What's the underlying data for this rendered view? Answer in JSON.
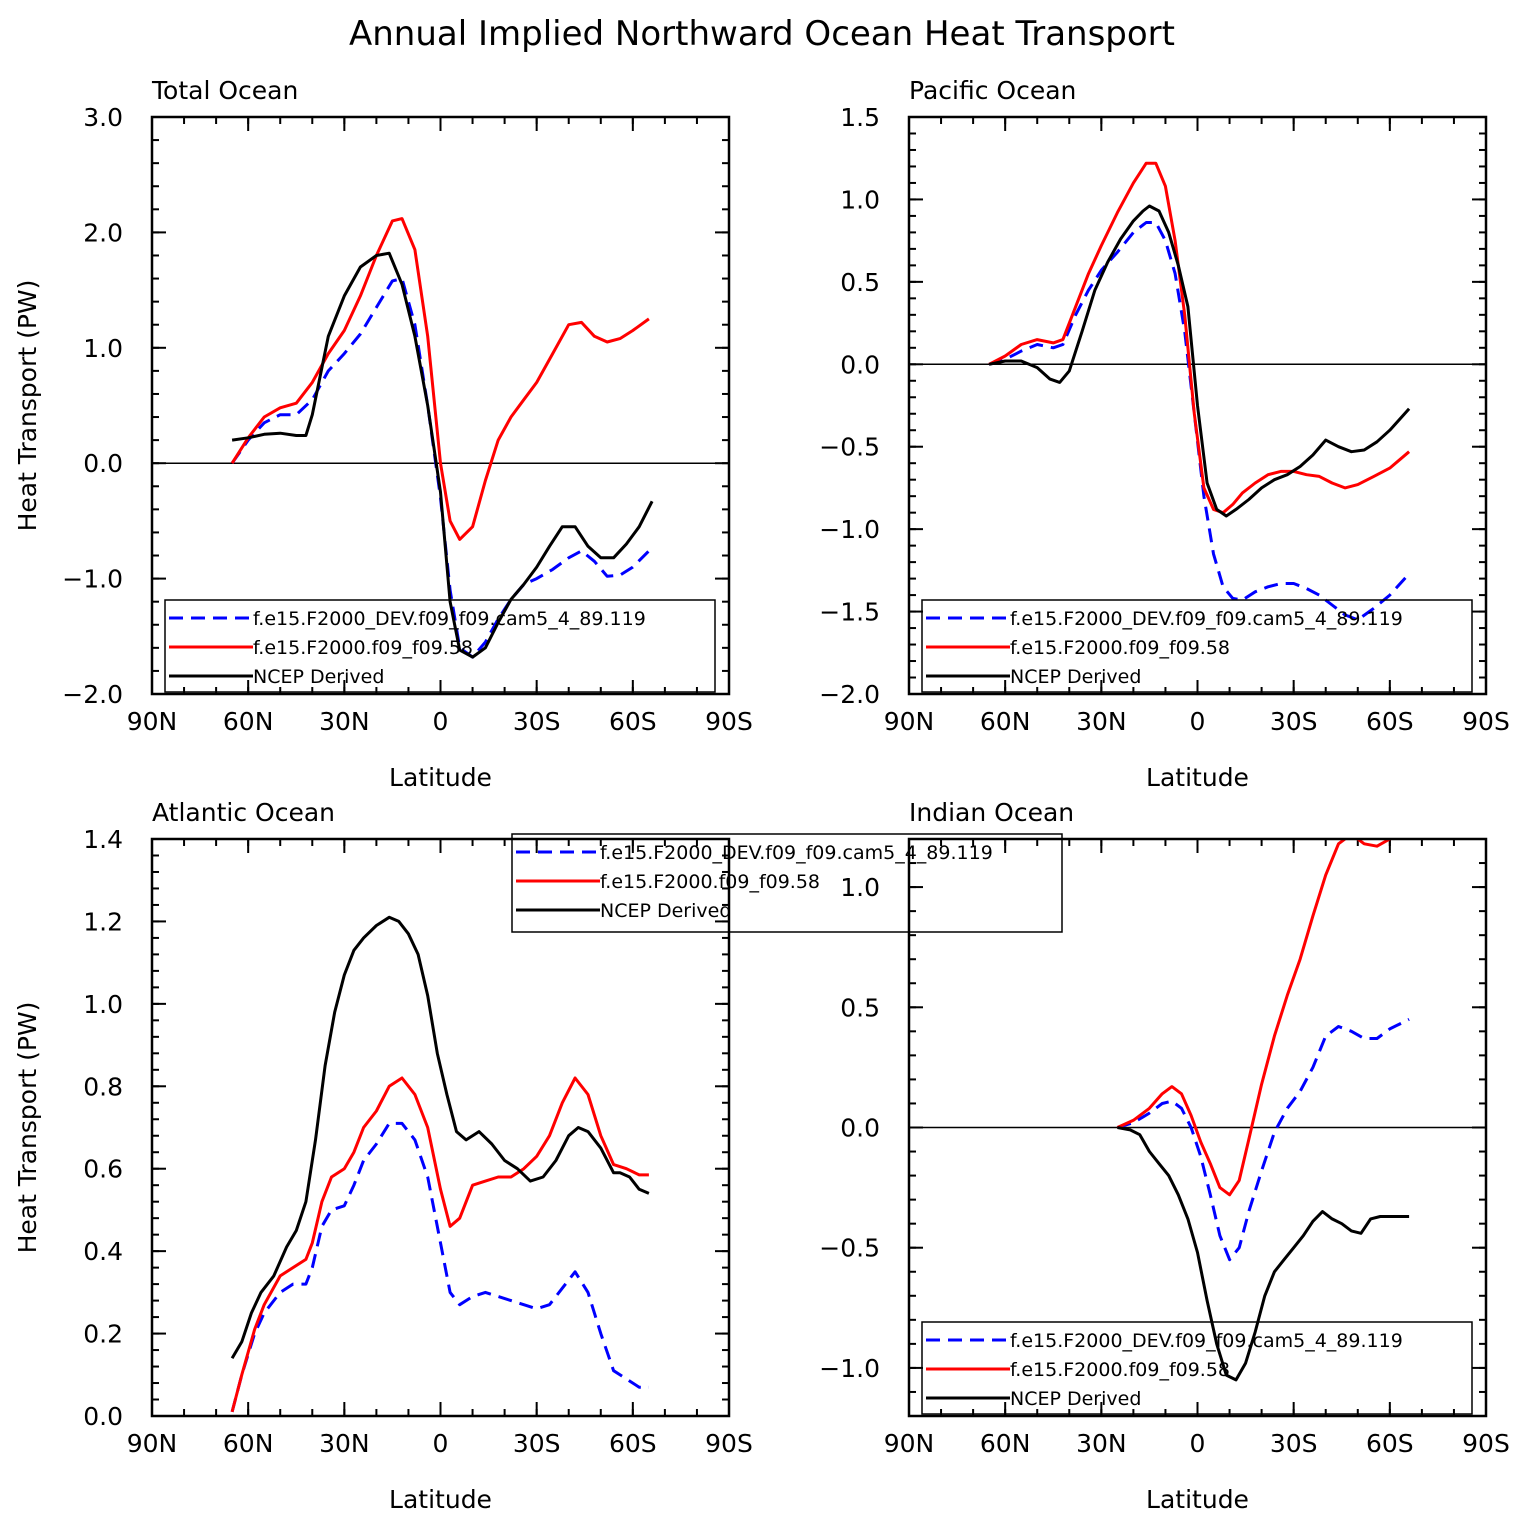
{
  "figure_title": "Annual Implied Northward Ocean Heat Transport",
  "colors": {
    "dev": "#0000ff",
    "ctrl": "#ff0000",
    "ncep": "#000000"
  },
  "legend_labels": [
    "f.e15.F2000_DEV.f09_f09.cam5_4_89.119",
    "f.e15.F2000.f09_f09.58",
    "NCEP Derived"
  ],
  "chart_data": [
    {
      "type": "line",
      "title": "Total Ocean",
      "xlabel": "Latitude",
      "ylabel": "Heat Transport (PW)",
      "x_ticks": [
        90,
        60,
        30,
        0,
        -30,
        -60,
        -90
      ],
      "x_tick_labels": [
        "90N",
        "60N",
        "30N",
        "0",
        "30S",
        "60S",
        "90S"
      ],
      "ylim": [
        -2.0,
        3.0
      ],
      "y_ticks": [
        -2.0,
        -1.0,
        0.0,
        1.0,
        2.0,
        3.0
      ],
      "y_tick_labels": [
        "−2.0",
        "−1.0",
        "0.0",
        "1.0",
        "2.0",
        "3.0"
      ],
      "legend_position": "bottom",
      "series": [
        {
          "name": "f.e15.F2000_DEV.f09_f09.cam5_4_89.119",
          "dash": true,
          "x": [
            65,
            60,
            55,
            50,
            45,
            40,
            35,
            30,
            25,
            20,
            15,
            12,
            8,
            4,
            0,
            -3,
            -6,
            -10,
            -14,
            -18,
            -22,
            -26,
            -30,
            -35,
            -40,
            -44,
            -48,
            -52,
            -56,
            -60,
            -65
          ],
          "y": [
            0.0,
            0.2,
            0.35,
            0.42,
            0.42,
            0.55,
            0.8,
            0.95,
            1.12,
            1.35,
            1.58,
            1.6,
            1.2,
            0.5,
            -0.3,
            -1.1,
            -1.6,
            -1.68,
            -1.55,
            -1.35,
            -1.18,
            -1.05,
            -1.0,
            -0.92,
            -0.82,
            -0.76,
            -0.85,
            -0.98,
            -0.97,
            -0.9,
            -0.76
          ]
        },
        {
          "name": "f.e15.F2000.f09_f09.58",
          "dash": false,
          "x": [
            65,
            60,
            55,
            50,
            45,
            40,
            35,
            30,
            25,
            20,
            15,
            12,
            8,
            4,
            0,
            -3,
            -6,
            -10,
            -14,
            -18,
            -22,
            -26,
            -30,
            -35,
            -40,
            -44,
            -48,
            -52,
            -56,
            -60,
            -65
          ],
          "y": [
            0.0,
            0.22,
            0.4,
            0.48,
            0.52,
            0.7,
            0.95,
            1.15,
            1.45,
            1.8,
            2.1,
            2.12,
            1.85,
            1.1,
            0.0,
            -0.5,
            -0.66,
            -0.55,
            -0.15,
            0.2,
            0.4,
            0.55,
            0.7,
            0.95,
            1.2,
            1.22,
            1.1,
            1.05,
            1.08,
            1.15,
            1.25
          ]
        },
        {
          "name": "NCEP Derived",
          "dash": false,
          "x": [
            65,
            60,
            55,
            50,
            45,
            42,
            40,
            35,
            30,
            25,
            20,
            16,
            12,
            8,
            4,
            0,
            -3,
            -6,
            -10,
            -14,
            -18,
            -22,
            -26,
            -30,
            -34,
            -38,
            -42,
            -46,
            -50,
            -54,
            -58,
            -62,
            -66
          ],
          "y": [
            0.2,
            0.22,
            0.25,
            0.26,
            0.24,
            0.24,
            0.42,
            1.1,
            1.45,
            1.7,
            1.8,
            1.82,
            1.55,
            1.1,
            0.5,
            -0.25,
            -1.2,
            -1.62,
            -1.68,
            -1.6,
            -1.38,
            -1.18,
            -1.05,
            -0.9,
            -0.72,
            -0.55,
            -0.55,
            -0.72,
            -0.82,
            -0.82,
            -0.7,
            -0.55,
            -0.33
          ]
        }
      ]
    },
    {
      "type": "line",
      "title": "Pacific Ocean",
      "xlabel": "Latitude",
      "ylabel": "",
      "x_ticks": [
        90,
        60,
        30,
        0,
        -30,
        -60,
        -90
      ],
      "x_tick_labels": [
        "90N",
        "60N",
        "30N",
        "0",
        "30S",
        "60S",
        "90S"
      ],
      "ylim": [
        -2.0,
        1.5
      ],
      "y_ticks": [
        -2.0,
        -1.5,
        -1.0,
        -0.5,
        0.0,
        0.5,
        1.0,
        1.5
      ],
      "y_tick_labels": [
        "−2.0",
        "−1.5",
        "−1.0",
        "−0.5",
        "0.0",
        "0.5",
        "1.0",
        "1.5"
      ],
      "legend_position": "bottom",
      "series": [
        {
          "name": "f.e15.F2000_DEV.f09_f09.cam5_4_89.119",
          "dash": true,
          "x": [
            65,
            60,
            55,
            50,
            45,
            42,
            38,
            34,
            30,
            25,
            20,
            16,
            13,
            10,
            7,
            4,
            1,
            -2,
            -5,
            -8,
            -11,
            -14,
            -18,
            -22,
            -26,
            -30,
            -34,
            -38,
            -42,
            -46,
            -50,
            -55,
            -60,
            -66
          ],
          "y": [
            0.0,
            0.03,
            0.08,
            0.12,
            0.1,
            0.12,
            0.3,
            0.45,
            0.57,
            0.68,
            0.8,
            0.86,
            0.86,
            0.75,
            0.55,
            0.2,
            -0.3,
            -0.8,
            -1.15,
            -1.35,
            -1.42,
            -1.43,
            -1.38,
            -1.35,
            -1.33,
            -1.33,
            -1.36,
            -1.4,
            -1.46,
            -1.52,
            -1.55,
            -1.48,
            -1.4,
            -1.27
          ]
        },
        {
          "name": "f.e15.F2000.f09_f09.58",
          "dash": false,
          "x": [
            65,
            60,
            55,
            50,
            45,
            42,
            38,
            34,
            30,
            25,
            20,
            16,
            13,
            10,
            7,
            4,
            1,
            -2,
            -5,
            -8,
            -11,
            -14,
            -18,
            -22,
            -26,
            -30,
            -34,
            -38,
            -42,
            -46,
            -50,
            -55,
            -60,
            -66
          ],
          "y": [
            0.0,
            0.05,
            0.12,
            0.15,
            0.13,
            0.15,
            0.35,
            0.55,
            0.72,
            0.92,
            1.1,
            1.22,
            1.22,
            1.08,
            0.75,
            0.3,
            -0.3,
            -0.75,
            -0.88,
            -0.9,
            -0.85,
            -0.78,
            -0.72,
            -0.67,
            -0.65,
            -0.65,
            -0.67,
            -0.68,
            -0.72,
            -0.75,
            -0.73,
            -0.68,
            -0.63,
            -0.53
          ]
        },
        {
          "name": "NCEP Derived",
          "dash": false,
          "x": [
            65,
            60,
            55,
            50,
            46,
            43,
            40,
            36,
            32,
            28,
            24,
            20,
            17,
            15,
            12,
            9,
            6,
            3,
            0,
            -3,
            -6,
            -9,
            -12,
            -16,
            -20,
            -24,
            -28,
            -32,
            -36,
            -40,
            -44,
            -48,
            -52,
            -56,
            -60,
            -66
          ],
          "y": [
            0.0,
            0.02,
            0.02,
            -0.02,
            -0.09,
            -0.11,
            -0.04,
            0.2,
            0.45,
            0.62,
            0.76,
            0.87,
            0.93,
            0.96,
            0.93,
            0.8,
            0.6,
            0.35,
            -0.25,
            -0.72,
            -0.88,
            -0.92,
            -0.88,
            -0.82,
            -0.75,
            -0.7,
            -0.67,
            -0.62,
            -0.55,
            -0.46,
            -0.5,
            -0.53,
            -0.52,
            -0.47,
            -0.4,
            -0.27
          ]
        }
      ]
    },
    {
      "type": "line",
      "title": "Atlantic Ocean",
      "xlabel": "Latitude",
      "ylabel": "Heat Transport (PW)",
      "x_ticks": [
        90,
        60,
        30,
        0,
        -30,
        -60,
        -90
      ],
      "x_tick_labels": [
        "90N",
        "60N",
        "30N",
        "0",
        "30S",
        "60S",
        "90S"
      ],
      "ylim": [
        0.0,
        1.4
      ],
      "y_ticks": [
        0.0,
        0.2,
        0.4,
        0.6,
        0.8,
        1.0,
        1.2,
        1.4
      ],
      "y_tick_labels": [
        "0.0",
        "0.2",
        "0.4",
        "0.6",
        "0.8",
        "1.0",
        "1.2",
        "1.4"
      ],
      "legend_position": "top-center",
      "series": [
        {
          "name": "f.e15.F2000_DEV.f09_f09.cam5_4_89.119",
          "dash": true,
          "x": [
            65,
            62,
            58,
            55,
            50,
            46,
            42,
            40,
            37,
            34,
            30,
            27,
            24,
            20,
            16,
            12,
            8,
            4,
            0,
            -3,
            -6,
            -10,
            -14,
            -18,
            -22,
            -26,
            -30,
            -34,
            -38,
            -42,
            -46,
            -50,
            -54,
            -58,
            -62,
            -65
          ],
          "y": [
            0.01,
            0.1,
            0.2,
            0.25,
            0.3,
            0.32,
            0.32,
            0.36,
            0.46,
            0.5,
            0.51,
            0.56,
            0.62,
            0.66,
            0.71,
            0.71,
            0.67,
            0.58,
            0.42,
            0.3,
            0.27,
            0.29,
            0.3,
            0.29,
            0.28,
            0.27,
            0.26,
            0.27,
            0.31,
            0.35,
            0.3,
            0.2,
            0.11,
            0.09,
            0.07,
            0.07
          ]
        },
        {
          "name": "f.e15.F2000.f09_f09.58",
          "dash": false,
          "x": [
            65,
            62,
            58,
            55,
            50,
            46,
            42,
            40,
            37,
            34,
            30,
            27,
            24,
            20,
            16,
            12,
            8,
            4,
            0,
            -3,
            -6,
            -10,
            -14,
            -18,
            -22,
            -26,
            -30,
            -34,
            -38,
            -42,
            -46,
            -50,
            -54,
            -58,
            -62,
            -65
          ],
          "y": [
            0.01,
            0.1,
            0.21,
            0.27,
            0.34,
            0.36,
            0.38,
            0.42,
            0.52,
            0.58,
            0.6,
            0.64,
            0.7,
            0.74,
            0.8,
            0.82,
            0.78,
            0.7,
            0.55,
            0.46,
            0.48,
            0.56,
            0.57,
            0.58,
            0.58,
            0.6,
            0.63,
            0.68,
            0.76,
            0.82,
            0.78,
            0.68,
            0.61,
            0.6,
            0.585,
            0.585
          ]
        },
        {
          "name": "NCEP Derived",
          "dash": false,
          "x": [
            65,
            62,
            59,
            56,
            52,
            48,
            45,
            42,
            39,
            36,
            33,
            30,
            27,
            24,
            20,
            16,
            13,
            10,
            7,
            4,
            1,
            -2,
            -5,
            -8,
            -12,
            -16,
            -20,
            -24,
            -28,
            -32,
            -36,
            -40,
            -43,
            -46,
            -50,
            -54,
            -56,
            -59,
            -62,
            -65
          ],
          "y": [
            0.14,
            0.18,
            0.25,
            0.3,
            0.34,
            0.41,
            0.45,
            0.52,
            0.67,
            0.85,
            0.98,
            1.07,
            1.13,
            1.16,
            1.19,
            1.21,
            1.2,
            1.17,
            1.12,
            1.02,
            0.88,
            0.78,
            0.69,
            0.67,
            0.69,
            0.66,
            0.62,
            0.6,
            0.57,
            0.58,
            0.62,
            0.68,
            0.7,
            0.69,
            0.65,
            0.59,
            0.59,
            0.58,
            0.55,
            0.54
          ]
        }
      ]
    },
    {
      "type": "line",
      "title": "Indian Ocean",
      "xlabel": "Latitude",
      "ylabel": "",
      "x_ticks": [
        90,
        60,
        30,
        0,
        -30,
        -60,
        -90
      ],
      "x_tick_labels": [
        "90N",
        "60N",
        "30N",
        "0",
        "30S",
        "60S",
        "90S"
      ],
      "ylim": [
        -1.2,
        1.2
      ],
      "y_ticks": [
        -1.0,
        -0.5,
        0.0,
        0.5,
        1.0
      ],
      "y_tick_labels": [
        "−1.0",
        "−0.5",
        "0.0",
        "0.5",
        "1.0"
      ],
      "legend_position": "bottom",
      "series": [
        {
          "name": "f.e15.F2000_DEV.f09_f09.cam5_4_89.119",
          "dash": true,
          "x": [
            25,
            20,
            15,
            11,
            8,
            5,
            2,
            -1,
            -4,
            -7,
            -10,
            -13,
            -16,
            -20,
            -24,
            -28,
            -32,
            -36,
            -40,
            -44,
            -48,
            -52,
            -56,
            -60,
            -63,
            -66
          ],
          "y": [
            0.0,
            0.02,
            0.06,
            0.1,
            0.11,
            0.08,
            0.0,
            -0.12,
            -0.28,
            -0.45,
            -0.55,
            -0.5,
            -0.35,
            -0.18,
            -0.02,
            0.08,
            0.15,
            0.25,
            0.38,
            0.42,
            0.4,
            0.37,
            0.37,
            0.41,
            0.43,
            0.45
          ]
        },
        {
          "name": "f.e15.F2000.f09_f09.58",
          "dash": false,
          "x": [
            25,
            20,
            15,
            11,
            8,
            5,
            2,
            -1,
            -4,
            -7,
            -10,
            -13,
            -16,
            -20,
            -24,
            -28,
            -32,
            -36,
            -40,
            -44,
            -48,
            -52,
            -56,
            -60,
            -63,
            -66
          ],
          "y": [
            0.0,
            0.03,
            0.08,
            0.14,
            0.17,
            0.14,
            0.05,
            -0.06,
            -0.15,
            -0.25,
            -0.28,
            -0.22,
            -0.05,
            0.18,
            0.38,
            0.55,
            0.7,
            0.88,
            1.05,
            1.18,
            1.22,
            1.18,
            1.17,
            1.2,
            1.22,
            1.24
          ]
        },
        {
          "name": "NCEP Derived",
          "dash": false,
          "x": [
            25,
            21,
            18,
            15,
            12,
            9,
            6,
            3,
            0,
            -3,
            -6,
            -9,
            -12,
            -15,
            -18,
            -21,
            -24,
            -27,
            -30,
            -33,
            -36,
            -39,
            -42,
            -45,
            -48,
            -51,
            -54,
            -57,
            -60,
            -63,
            -66
          ],
          "y": [
            0.0,
            -0.01,
            -0.03,
            -0.1,
            -0.15,
            -0.2,
            -0.28,
            -0.38,
            -0.52,
            -0.72,
            -0.9,
            -1.03,
            -1.05,
            -0.98,
            -0.85,
            -0.7,
            -0.6,
            -0.55,
            -0.5,
            -0.45,
            -0.39,
            -0.35,
            -0.38,
            -0.4,
            -0.43,
            -0.44,
            -0.38,
            -0.37,
            -0.37,
            -0.37,
            -0.37
          ]
        }
      ]
    }
  ]
}
